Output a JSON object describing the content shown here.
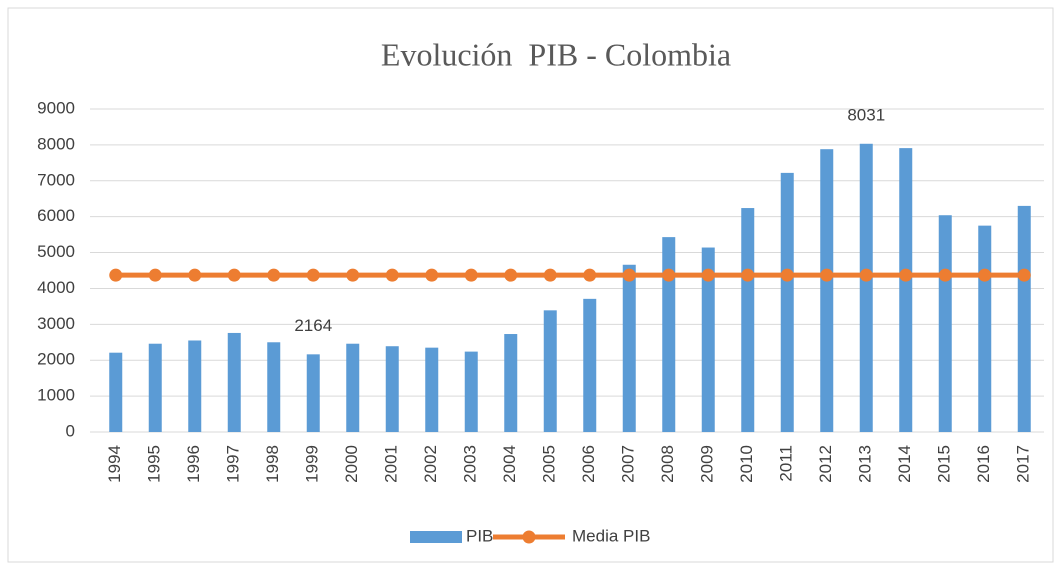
{
  "chart_data": {
    "type": "bar",
    "title": "Evolución  PIB - Colombia",
    "categories": [
      "1994",
      "1995",
      "1996",
      "1997",
      "1998",
      "1999",
      "2000",
      "2001",
      "2002",
      "2003",
      "2004",
      "2005",
      "2006",
      "2007",
      "2008",
      "2009",
      "2010",
      "2011",
      "2012",
      "2013",
      "2014",
      "2015",
      "2016",
      "2017"
    ],
    "series": [
      {
        "name": "PIB",
        "type": "bar",
        "color": "#5b9bd5",
        "values": [
          2210,
          2460,
          2550,
          2760,
          2500,
          2164,
          2460,
          2390,
          2350,
          2240,
          2730,
          3390,
          3710,
          4660,
          5430,
          5140,
          6240,
          7220,
          7880,
          8031,
          7910,
          6040,
          5750,
          6300
        ],
        "value_labels": [
          null,
          null,
          null,
          null,
          null,
          "2164",
          null,
          null,
          null,
          null,
          null,
          null,
          null,
          null,
          null,
          null,
          null,
          null,
          null,
          "8031",
          null,
          null,
          null,
          null
        ]
      },
      {
        "name": "Media PIB",
        "type": "line",
        "color": "#ed7d31",
        "values": [
          4370,
          4370,
          4370,
          4370,
          4370,
          4370,
          4370,
          4370,
          4370,
          4370,
          4370,
          4370,
          4370,
          4370,
          4370,
          4370,
          4370,
          4370,
          4370,
          4370,
          4370,
          4370,
          4370,
          4370
        ]
      }
    ],
    "ylim": [
      0,
      9000
    ],
    "yticks": [
      0,
      1000,
      2000,
      3000,
      4000,
      5000,
      6000,
      7000,
      8000,
      9000
    ],
    "grid": true,
    "legend": "bottom"
  }
}
